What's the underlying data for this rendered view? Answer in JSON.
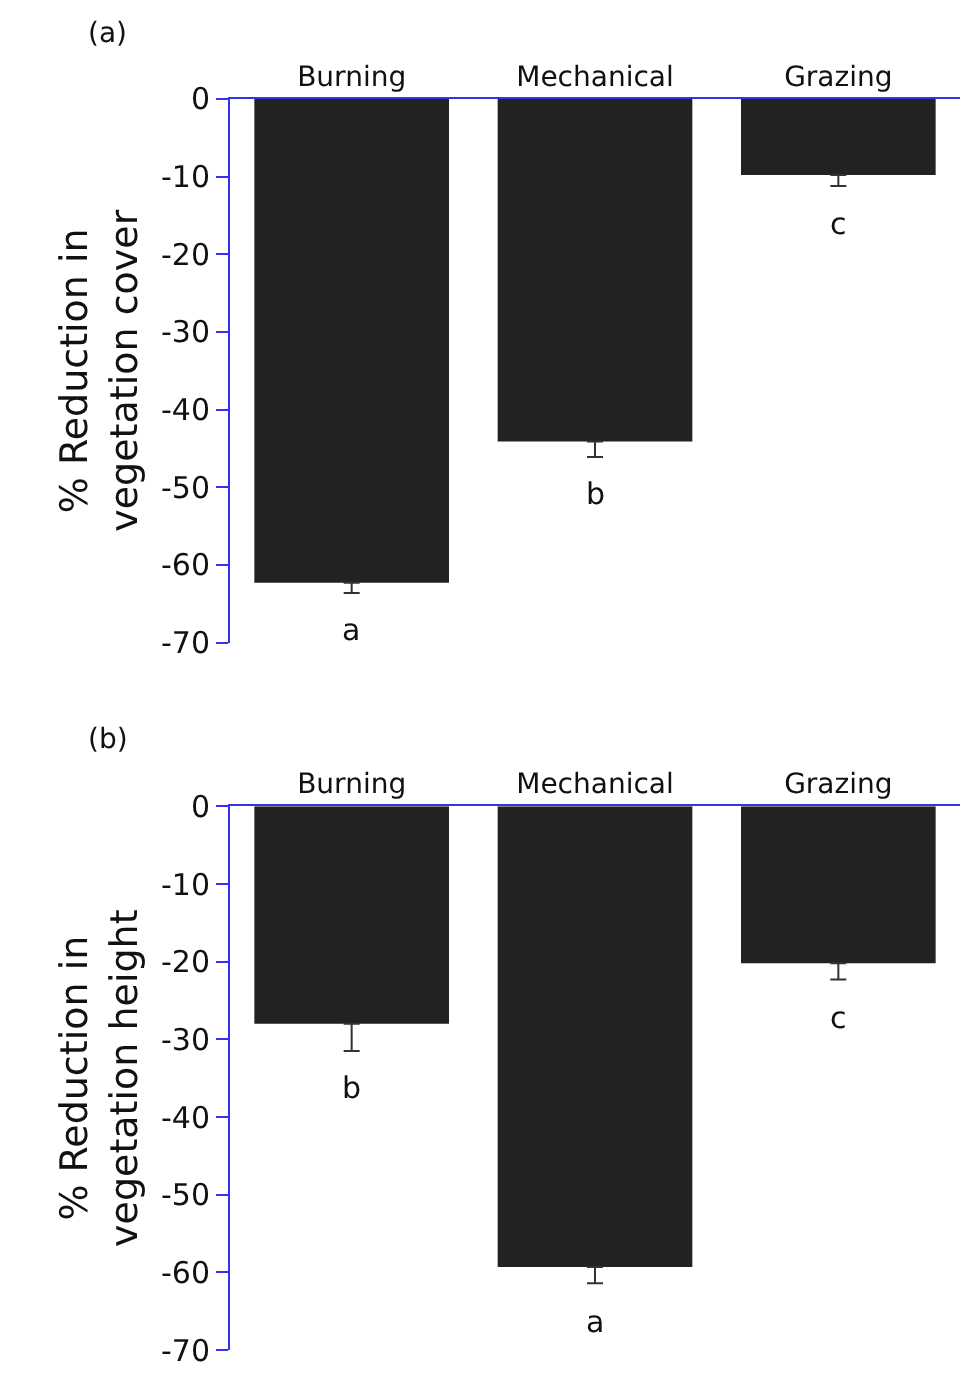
{
  "chart_data": [
    {
      "type": "bar",
      "title": "(a)",
      "ylabel": "% Reduction in\nvegetation cover",
      "categories": [
        "Burning",
        "Mechanical",
        "Grazing"
      ],
      "values": [
        -62.3,
        -44.1,
        -9.8
      ],
      "color": "#222222",
      "errors": [
        [
          -63.6,
          -62.3
        ],
        [
          -46.1,
          -44.1
        ],
        [
          -11.2,
          -9.8
        ]
      ],
      "ylim": [
        -70,
        0
      ],
      "yticks": [
        0,
        -10,
        -20,
        -30,
        -40,
        -50,
        -60,
        -70
      ],
      "annotations": [
        "a",
        "b",
        "c"
      ]
    },
    {
      "type": "bar",
      "title": "(b)",
      "ylabel": "% Reduction in\nvegetation height",
      "categories": [
        "Burning",
        "Mechanical",
        "Grazing"
      ],
      "values": [
        -28.0,
        -59.3,
        -20.2
      ],
      "color": "#222222",
      "errors": [
        [
          -31.5,
          -28.0
        ],
        [
          -61.4,
          -59.3
        ],
        [
          -22.3,
          -20.2
        ]
      ],
      "ylim": [
        -70,
        0
      ],
      "yticks": [
        0,
        -10,
        -20,
        -30,
        -40,
        -50,
        -60,
        -70
      ],
      "annotations": [
        "b",
        "a",
        "c"
      ]
    }
  ]
}
